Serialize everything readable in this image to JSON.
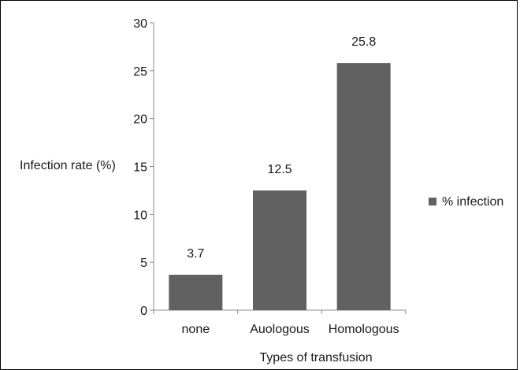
{
  "chart_data": {
    "type": "bar",
    "title": "",
    "xlabel": "Types of transfusion",
    "ylabel": "Infection rate (%)",
    "categories": [
      "none",
      "Auologous",
      "Homologous"
    ],
    "series": [
      {
        "name": "% infection",
        "values": [
          3.7,
          12.5,
          25.8
        ],
        "color": "#616161"
      }
    ],
    "data_labels": [
      "3.7",
      "12.5",
      "25.8"
    ],
    "ylim": [
      0,
      30
    ],
    "yticks": [
      0,
      5,
      10,
      15,
      20,
      25,
      30
    ],
    "grid": false,
    "legend_position": "right"
  }
}
